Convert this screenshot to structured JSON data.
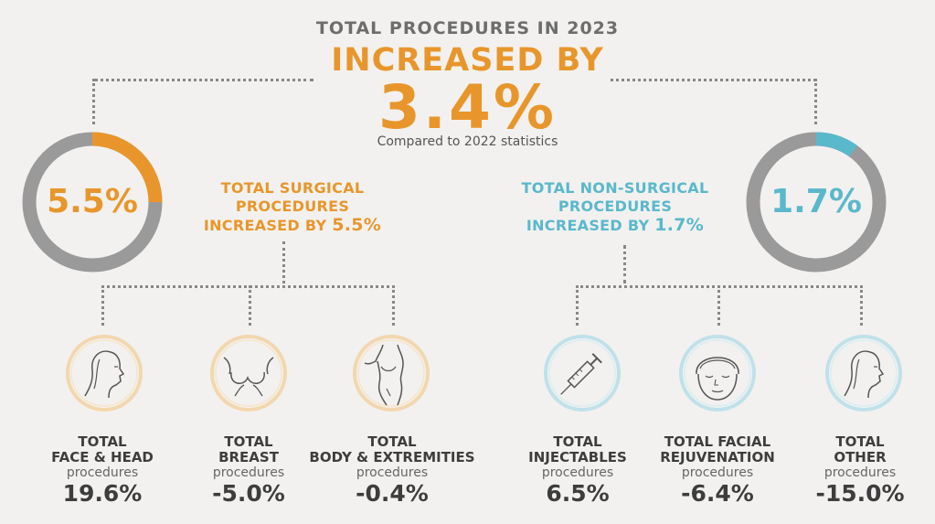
{
  "header": {
    "title": "TOTAL PROCEDURES IN 2023",
    "increased": "INCREASED BY",
    "percent": "3.4%",
    "compared": "Compared to 2022 statistics"
  },
  "surgical": {
    "ring_label": "5.5%",
    "ring_fraction": 0.25,
    "line1": "TOTAL SURGICAL",
    "line2": "PROCEDURES",
    "line3_prefix": "INCREASED BY ",
    "line3_value": "5.5%",
    "color": "#e8962b"
  },
  "nonsurgical": {
    "ring_label": "1.7%",
    "ring_fraction": 0.1,
    "line1": "TOTAL NON-SURGICAL",
    "line2": "PROCEDURES",
    "line3_prefix": "INCREASED BY ",
    "line3_value": "1.7%",
    "color": "#5ab8cc"
  },
  "ring_track_color": "#9a9a9a",
  "categories": [
    {
      "name1": "TOTAL",
      "name2": "FACE & HEAD",
      "unit": "procedures",
      "value": "19.6%"
    },
    {
      "name1": "TOTAL",
      "name2": "BREAST",
      "unit": "procedures",
      "value": "-5.0%"
    },
    {
      "name1": "TOTAL",
      "name2": "BODY & EXTREMITIES",
      "unit": "procedures",
      "value": "-0.4%"
    },
    {
      "name1": "TOTAL",
      "name2": "INJECTABLES",
      "unit": "procedures",
      "value": "6.5%"
    },
    {
      "name1": "TOTAL FACIAL",
      "name2": "REJUVENATION",
      "unit": "procedures",
      "value": "-6.4%"
    },
    {
      "name1": "TOTAL",
      "name2": "OTHER",
      "unit": "procedures",
      "value": "-15.0%"
    }
  ],
  "icons": [
    "face-profile-icon",
    "breast-icon",
    "body-icon",
    "syringe-icon",
    "facial-mask-icon",
    "face-profile-icon"
  ]
}
